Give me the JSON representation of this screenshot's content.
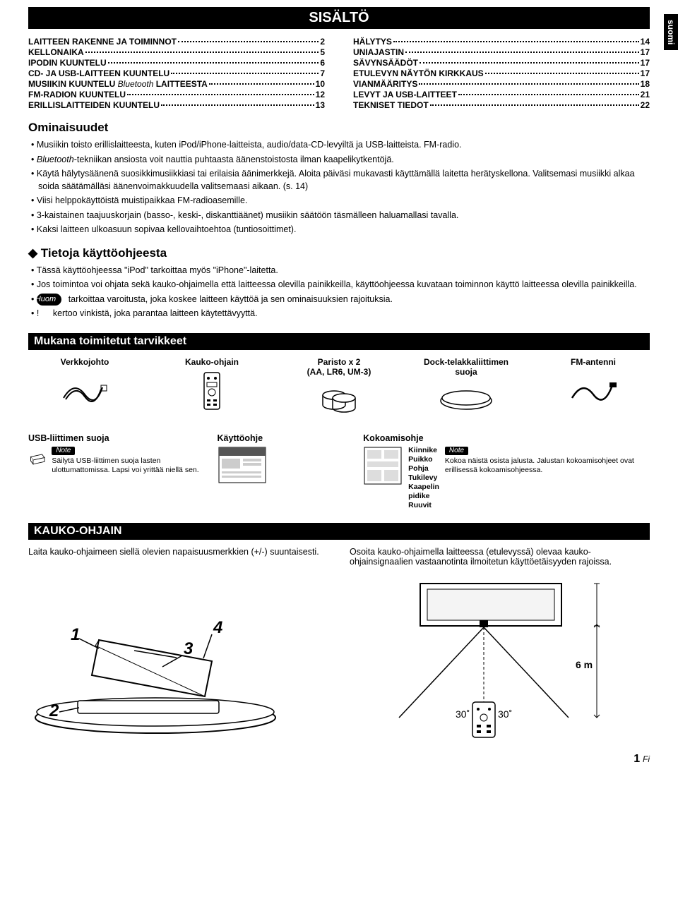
{
  "side_tab": "suomi",
  "header": "SISÄLTÖ",
  "toc_left": [
    {
      "label": "LAITTEEN RAKENNE JA TOIMINNOT",
      "page": "2"
    },
    {
      "label": "KELLONAIKA",
      "page": "5"
    },
    {
      "label": "IPODIN KUUNTELU",
      "page": "6"
    },
    {
      "label": "CD- JA USB-LAITTEEN KUUNTELU",
      "page": "7"
    },
    {
      "label": "MUSIIKIN KUUNTELU ",
      "label_ital": "Bluetooth",
      "label_after": " LAITTEESTA",
      "page": "10"
    },
    {
      "label": "FM-RADION KUUNTELU",
      "page": "12"
    },
    {
      "label": "ERILLISLAITTEIDEN KUUNTELU",
      "page": "13"
    }
  ],
  "toc_right": [
    {
      "label": "HÄLYTYS",
      "page": "14"
    },
    {
      "label": "UNIAJASTIN",
      "page": "17"
    },
    {
      "label": "SÄVYNSÄÄDÖT",
      "page": "17"
    },
    {
      "label": "ETULEVYN NÄYTÖN KIRKKAUS",
      "page": "17"
    },
    {
      "label": "VIANMÄÄRITYS",
      "page": "18"
    },
    {
      "label": "LEVYT JA USB-LAITTEET",
      "page": "21"
    },
    {
      "label": "TEKNISET TIEDOT",
      "page": "22"
    }
  ],
  "features_heading": "Ominaisuudet",
  "features": [
    "Musiikin toisto erillislaitteesta, kuten iPod/iPhone-laitteista, audio/data-CD-levyiltä ja USB-laitteista. FM-radio.",
    "<span class='ital'>Bluetooth</span>-tekniikan ansiosta voit nauttia puhtaasta äänenstoistosta ilman kaapelikytkentöjä.",
    "Käytä hälytysäänenä suosikkimusiikkiasi tai erilaisia äänimerkkejä. Aloita päiväsi mukavasti käyttämällä laitetta herätyskellona. Valitsemasi musiikki alkaa soida säätämälläsi äänenvoimakkuudella valitsemaasi aikaan. (s. 14)",
    "Viisi helppokäyttöistä muistipaikkaa FM-radioasemille.",
    "3-kaistainen taajuuskorjain (basso-, keski-, diskanttiäänet) musiikin säätöön täsmälleen haluamallasi tavalla.",
    "Kaksi laitteen ulkoasuun sopivaa kellovaihtoehtoa (tuntiosoittimet)."
  ],
  "about_heading": "Tietoja käyttöohjeesta",
  "about": [
    "Tässä käyttöohjeessa \"iPod\" tarkoittaa myös \"iPhone\"-laitetta.",
    "Jos toimintoa voi ohjata sekä kauko-ohjaimella että laitteessa olevilla painikkeilla, käyttöohjeessa kuvataan toiminnon käyttö laitteessa olevilla painikkeilla."
  ],
  "badge_huom": "Huom",
  "badge_line": "tarkoittaa varoitusta, joka koskee laitteen käyttöä ja sen ominaisuuksien rajoituksia.",
  "tip_line_prefix": "!",
  "tip_line": "kertoo vinkistä, joka parantaa laitteen käytettävyyttä.",
  "acc_bar": "Mukana toimitetut tarvikkeet",
  "acc": {
    "cord": "Verkkojohto",
    "remote": "Kauko-ohjain",
    "battery": "Paristo x 2\n(AA, LR6, UM-3)",
    "dock": "Dock-telakkaliittimen\nsuoja",
    "antenna": "FM-antenni"
  },
  "row2": {
    "usb_title": "USB-liittimen suoja",
    "usb_note_label": "Note",
    "usb_note": "Säilytä USB-liittimen suoja lasten ulottumattomissa. Lapsi voi yrittää niellä sen.",
    "manual_title": "Käyttöohje",
    "assembly_title": "Kokoamisohje",
    "assembly_parts": "Kiinnike\nPuikko\nPohja\nTukilevy\nKaapelin\npidike\nRuuvit",
    "assembly_note_label": "Note",
    "assembly_note": "Kokoa näistä osista jalusta. Jalustan kokoamisohjeet ovat erillisessä kokoamisohjeessa."
  },
  "kauko_bar": "KAUKO-OHJAIN",
  "kauko_left": "Laita kauko-ohjaimeen siellä olevien napaisuusmerkkien (+/-) suuntaisesti.",
  "kauko_right": "Osoita kauko-ohjaimella laitteessa (etulevyssä) olevaa kauko-ohjainsignaalien vastaanotinta ilmoitetun käyttöetäisyyden rajoissa.",
  "diagram": {
    "n1": "1",
    "n2": "2",
    "n3": "3",
    "n4": "4",
    "dist": "6 m",
    "ang1": "30˚",
    "ang2": "30˚"
  },
  "footer": {
    "page": "1",
    "lang": "Fi"
  }
}
